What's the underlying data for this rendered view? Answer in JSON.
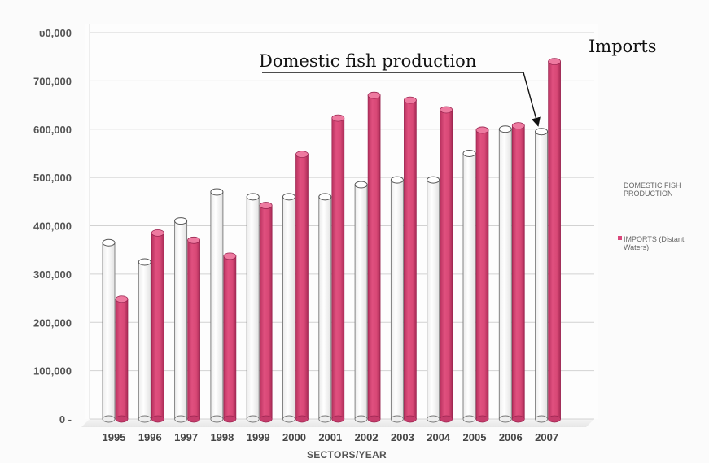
{
  "chart_data": {
    "type": "bar",
    "categories": [
      "1995",
      "1996",
      "1997",
      "1998",
      "1999",
      "2000",
      "2001",
      "2002",
      "2003",
      "2004",
      "2005",
      "2006",
      "2007"
    ],
    "series": [
      {
        "name": "DOMESTIC FISH PRODUCTION",
        "values": [
          365000,
          325000,
          410000,
          470000,
          460000,
          460000,
          460000,
          485000,
          495000,
          495000,
          550000,
          600000,
          595000
        ],
        "color": "#ffffff"
      },
      {
        "name": "IMPORTS (Distant Waters)",
        "values": [
          248000,
          385000,
          370000,
          337000,
          442000,
          548000,
          623000,
          670000,
          660000,
          640000,
          598000,
          607000,
          740000
        ],
        "color": "#d9467a"
      }
    ],
    "y_tick_labels": [
      "0 -",
      "100,000",
      "200,000",
      "300,000",
      "400,000",
      "500,000",
      "600,000",
      "700,000",
      "υ0,000"
    ],
    "ylim": [
      0,
      800000
    ],
    "xlabel": "SECTORS/YEAR",
    "ylabel": "",
    "grid": true,
    "legend": {
      "position": "right",
      "entries": [
        {
          "lines": [
            "DOMESTIC FISH",
            "PRODUCTION"
          ]
        },
        {
          "lines": [
            "IMPORTS (Distant",
            "Waters)"
          ]
        }
      ]
    },
    "annotations": [
      {
        "text": "Domestic fish production",
        "points_to": {
          "series": 0,
          "category": "2007"
        }
      },
      {
        "text": "Imports",
        "points_to": {
          "series": 1,
          "category": "2007"
        }
      }
    ]
  }
}
